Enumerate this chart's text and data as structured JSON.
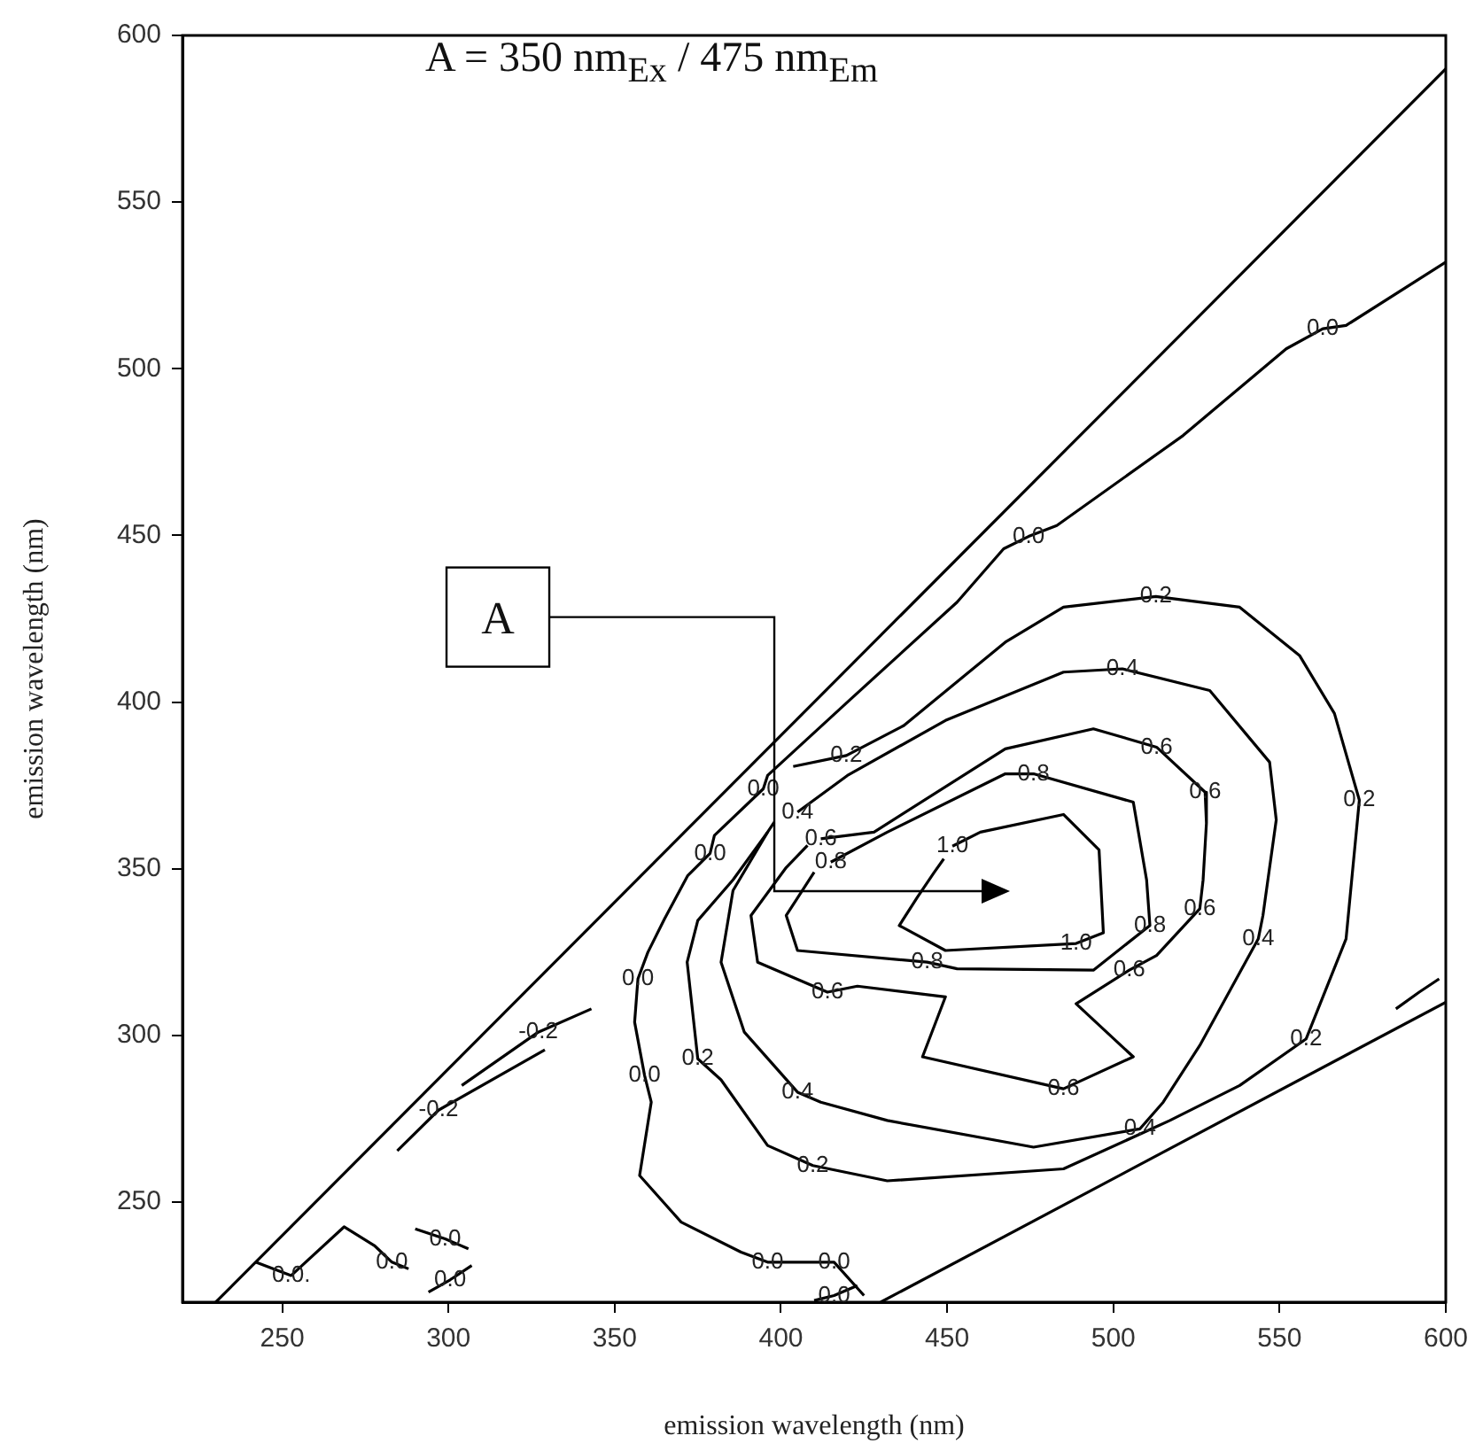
{
  "chart_data": {
    "type": "line",
    "xlabel": "emission wavelength (nm)",
    "ylabel": "emission wavelength (nm)",
    "xlim": [
      220,
      600
    ],
    "ylim": [
      220,
      600
    ],
    "xticks": [
      250,
      300,
      350,
      400,
      450,
      500,
      550,
      600
    ],
    "yticks": [
      250,
      300,
      350,
      400,
      450,
      500,
      550,
      600
    ],
    "marker": "none",
    "line_style": "solid",
    "series": [
      {
        "color": "#000000",
        "x": [
          230,
          600
        ],
        "values": [
          220,
          590
        ]
      },
      {
        "color": "#000000",
        "x": [
          430,
          600
        ],
        "values": [
          220,
          310
        ]
      },
      {
        "color": "#000000",
        "x": [
          600,
          570,
          563,
          552,
          521,
          483,
          474.5,
          467,
          453,
          420,
          396,
          394.7,
          380,
          378.7,
          372,
          365,
          360,
          357,
          356,
          359,
          361,
          357.5,
          370,
          388,
          396,
          416,
          425
        ],
        "values": [
          532,
          513,
          512,
          506,
          480,
          453,
          449.7,
          446,
          430,
          400,
          378,
          374,
          360,
          354.6,
          348,
          335,
          325,
          317,
          304,
          288,
          280,
          258,
          244,
          235,
          232,
          232,
          222
        ]
      },
      {
        "color": "#000000",
        "x": [
          403.7,
          419.7,
          437,
          467.5,
          485,
          512.8,
          538,
          556,
          566.5,
          574,
          570,
          558,
          538,
          517,
          485,
          432,
          409.6,
          396,
          382,
          375,
          371.8,
          375,
          385.6,
          396
        ],
        "values": [
          380.7,
          384,
          393,
          418,
          428.5,
          431.7,
          428.5,
          414,
          396.6,
          370.6,
          329,
          299,
          285,
          274.5,
          260,
          256.4,
          261,
          267,
          286.7,
          293,
          322,
          334.5,
          346.7,
          361
        ]
      },
      {
        "color": "#000000",
        "x": [
          405,
          420,
          449.5,
          485,
          502.7,
          529,
          547,
          549,
          545,
          543.6,
          526,
          515,
          508,
          476,
          432,
          412,
          405,
          389,
          382,
          385.6,
          396,
          398
        ],
        "values": [
          367,
          378,
          394.5,
          409,
          410,
          403.5,
          382,
          364.7,
          336,
          329,
          297,
          280,
          272,
          266.5,
          274.5,
          280,
          283,
          301,
          322,
          343.5,
          361,
          364
        ]
      },
      {
        "color": "#000000",
        "x": [
          412,
          428,
          467.5,
          494,
          513,
          527.6,
          528,
          527,
          526,
          513,
          504.8,
          488.8,
          506,
          485,
          442.6,
          449.5,
          423,
          414,
          393,
          391,
          401.6,
          408
        ],
        "values": [
          359,
          361,
          386,
          392,
          386.5,
          373,
          363.7,
          346.7,
          338,
          324,
          319.6,
          309.5,
          293.6,
          284,
          293.6,
          311.6,
          314.8,
          313,
          322,
          336,
          350.4,
          357
        ]
      },
      {
        "color": "#000000",
        "x": [
          415,
          432,
          467.5,
          476,
          506,
          510,
          511,
          494,
          453,
          444,
          405,
          401.6,
          410
        ],
        "values": [
          352,
          361,
          378.5,
          378.5,
          370,
          346.7,
          333,
          319.6,
          320,
          322,
          325.5,
          336,
          349
        ]
      },
      {
        "color": "#000000",
        "x": [
          451.6,
          460,
          485,
          495.7,
          497,
          488.8,
          449.5,
          435.6,
          441,
          446,
          449
        ],
        "values": [
          356.8,
          361,
          366.3,
          355.7,
          330.8,
          327.6,
          325.5,
          333,
          341.4,
          348.8,
          353
        ]
      },
      {
        "color": "#000000",
        "x": [
          304,
          327,
          343
        ],
        "values": [
          285,
          301,
          308
        ]
      },
      {
        "color": "#000000",
        "x": [
          284.6,
          297,
          329
        ],
        "values": [
          265.4,
          277.6,
          295.7
        ]
      },
      {
        "color": "#000000",
        "x": [
          242,
          252.7,
          268.6,
          277.7,
          283,
          288
        ],
        "values": [
          232,
          228,
          242.6,
          237,
          232,
          230
        ]
      },
      {
        "color": "#000000",
        "x": [
          290,
          299,
          306
        ],
        "values": [
          242,
          239,
          236
        ]
      },
      {
        "color": "#000000",
        "x": [
          294,
          300.5,
          307
        ],
        "values": [
          223,
          226.7,
          231
        ]
      },
      {
        "color": "#000000",
        "x": [
          410,
          416,
          423
        ],
        "values": [
          220.5,
          222,
          225
        ]
      },
      {
        "color": "#000000",
        "x": [
          585,
          592,
          598
        ],
        "values": [
          308,
          313,
          317
        ]
      }
    ],
    "annotations": [
      "A = 350 nm$_{Ex}$ / 475 nm$_{Em}$",
      "A",
      {
        "text": "0.0",
        "x": 563,
        "y": 512
      },
      {
        "text": "0.0",
        "x": 474.5,
        "y": 449.7
      },
      {
        "text": "0.0",
        "x": 394.7,
        "y": 374
      },
      {
        "text": "0.0",
        "x": 378.7,
        "y": 354.6
      },
      {
        "text": "0.0",
        "x": 357,
        "y": 317
      },
      {
        "text": "0.0",
        "x": 359,
        "y": 288
      },
      {
        "text": "0.0",
        "x": 396,
        "y": 232
      },
      {
        "text": "0.0",
        "x": 416,
        "y": 232
      },
      {
        "text": "0.0",
        "x": 416,
        "y": 222
      },
      {
        "text": "0.2",
        "x": 419.7,
        "y": 384
      },
      {
        "text": "0.2",
        "x": 512.8,
        "y": 431.7
      },
      {
        "text": "0.2",
        "x": 574,
        "y": 370.6
      },
      {
        "text": "0.2",
        "x": 558,
        "y": 299
      },
      {
        "text": "0.2",
        "x": 409.6,
        "y": 261
      },
      {
        "text": "0.2",
        "x": 375,
        "y": 293
      },
      {
        "text": "0.4",
        "x": 405,
        "y": 367
      },
      {
        "text": "0.4",
        "x": 502.7,
        "y": 410
      },
      {
        "text": "0.4",
        "x": 543.6,
        "y": 329
      },
      {
        "text": "0.4",
        "x": 508,
        "y": 272
      },
      {
        "text": "0.4",
        "x": 405,
        "y": 283
      },
      {
        "text": "0.6",
        "x": 412,
        "y": 359
      },
      {
        "text": "0.6",
        "x": 513,
        "y": 386.5
      },
      {
        "text": "0.6",
        "x": 527.6,
        "y": 373
      },
      {
        "text": "0.6",
        "x": 526,
        "y": 338
      },
      {
        "text": "0.6",
        "x": 504.8,
        "y": 319.6
      },
      {
        "text": "0.6",
        "x": 485,
        "y": 284
      },
      {
        "text": "0.6",
        "x": 414,
        "y": 313
      },
      {
        "text": "0.8",
        "x": 415,
        "y": 352
      },
      {
        "text": "0.8",
        "x": 476,
        "y": 378.5
      },
      {
        "text": "0.8",
        "x": 511,
        "y": 333
      },
      {
        "text": "0.8",
        "x": 444,
        "y": 322
      },
      {
        "text": "1.0",
        "x": 451.6,
        "y": 356.8
      },
      {
        "text": "1.0",
        "x": 488.8,
        "y": 327.6
      },
      {
        "text": "-0.2",
        "x": 327,
        "y": 301
      },
      {
        "text": "-0.2",
        "x": 297,
        "y": 277.6
      },
      {
        "text": "0.0.",
        "x": 252.7,
        "y": 228
      },
      {
        "text": "0.0",
        "x": 283,
        "y": 232
      },
      {
        "text": "0.0",
        "x": 299,
        "y": 239
      },
      {
        "text": "0.0",
        "x": 300.5,
        "y": 226.7
      }
    ]
  }
}
